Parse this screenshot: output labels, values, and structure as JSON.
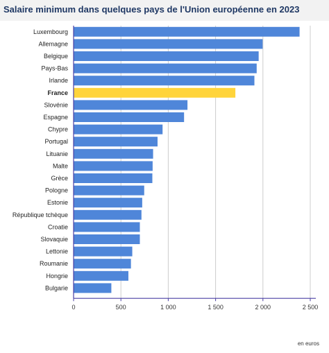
{
  "header": {
    "title": "Salaire minimum dans quelques pays de l'Union européenne en 2023"
  },
  "colors": {
    "bar": "#4f86d9",
    "highlight": "#ffd43b",
    "axis": "#4a3fa3",
    "grid": "#cccccc"
  },
  "chart_data": {
    "type": "bar",
    "orientation": "horizontal",
    "title": "Salaire minimum dans quelques pays de l'Union européenne en 2023",
    "xlabel": "en euros",
    "ylabel": "",
    "xlim": [
      0,
      2500
    ],
    "xticks": [
      0,
      500,
      1000,
      1500,
      2000,
      2500
    ],
    "xtick_labels": [
      "0",
      "500",
      "1 000",
      "1 500",
      "2 000",
      "2 500"
    ],
    "grid": "vertical",
    "highlighted_category": "France",
    "categories": [
      "Luxembourg",
      "Allemagne",
      "Belgique",
      "Pays-Bas",
      "Irlande",
      "France",
      "Slovénie",
      "Espagne",
      "Chypre",
      "Portugal",
      "Lituanie",
      "Malte",
      "Grèce",
      "Pologne",
      "Estonie",
      "République tchèque",
      "Croatie",
      "Slovaquie",
      "Lettonie",
      "Roumanie",
      "Hongrie",
      "Bulgarie"
    ],
    "values": [
      2387,
      1997,
      1955,
      1934,
      1910,
      1709,
      1203,
      1167,
      940,
      887,
      840,
      835,
      832,
      746,
      725,
      717,
      700,
      700,
      620,
      606,
      579,
      399
    ]
  }
}
